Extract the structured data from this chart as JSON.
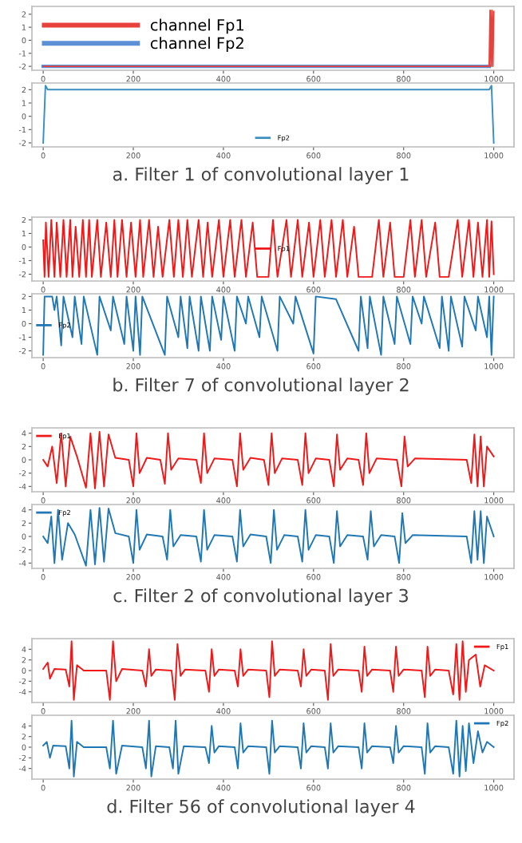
{
  "chart_data": [
    {
      "type": "line",
      "xlim": [
        -25,
        1045
      ],
      "xticks": [
        0,
        200,
        400,
        600,
        800,
        1000
      ],
      "ylim": [
        -2.3,
        2.6
      ],
      "yticks": [
        -2,
        -1,
        0,
        1,
        2
      ],
      "legend": "top left",
      "series": [
        {
          "name": "channel Fp1",
          "color": "#e8413c",
          "x": [
            0,
            990,
            992,
            994,
            996,
            998,
            1000
          ],
          "values": [
            -2,
            -2,
            2.3,
            -2,
            2.3,
            -2,
            2.2
          ]
        },
        {
          "name": "channel Fp2",
          "color": "#5b8fd6",
          "x": [
            0,
            990
          ],
          "values": [
            -2,
            -2
          ]
        }
      ]
    },
    {
      "type": "line",
      "xlim": [
        -25,
        1045
      ],
      "xticks": [
        0,
        200,
        400,
        600,
        800,
        1000
      ],
      "ylim": [
        -2.3,
        2.5
      ],
      "yticks": [
        -2,
        -1,
        0,
        1,
        2
      ],
      "legend": "bottom",
      "annotations": [
        "a. Filter 1 of convolutional layer 1"
      ],
      "series": [
        {
          "name": "Fp2",
          "color": "#3b8ec0",
          "x": [
            0,
            5,
            10,
            500,
            990,
            995,
            1000
          ],
          "values": [
            -2,
            2.3,
            2,
            2,
            2,
            2.3,
            -2
          ]
        }
      ]
    },
    {
      "type": "line",
      "xlim": [
        -25,
        1045
      ],
      "xticks": [
        0,
        200,
        400,
        600,
        800,
        1000
      ],
      "ylim": [
        -2.5,
        2.2
      ],
      "yticks": [
        -2,
        -1,
        0,
        1,
        2
      ],
      "legend": "center",
      "series": [
        {
          "name": "Fp1",
          "color": "#f01818",
          "x": [
            0,
            3,
            6,
            12,
            18,
            25,
            30,
            38,
            45,
            52,
            60,
            65,
            72,
            80,
            88,
            95,
            102,
            108,
            120,
            128,
            140,
            150,
            158,
            165,
            175,
            185,
            195,
            205,
            215,
            222,
            235,
            245,
            255,
            265,
            280,
            290,
            300,
            310,
            320,
            330,
            345,
            355,
            365,
            375,
            390,
            400,
            415,
            425,
            440,
            450,
            465,
            475,
            500,
            510,
            520,
            540,
            550,
            565,
            575,
            590,
            600,
            615,
            625,
            640,
            650,
            665,
            675,
            690,
            700,
            730,
            745,
            755,
            770,
            780,
            800,
            815,
            825,
            840,
            850,
            870,
            880,
            900,
            920,
            930,
            945,
            955,
            965,
            975,
            985,
            990,
            995,
            1000
          ],
          "values": [
            0.5,
            -2.2,
            1.8,
            -2.2,
            2,
            -2.2,
            1.8,
            -2.2,
            2,
            -2.2,
            2,
            -2.2,
            1.5,
            -2.2,
            2,
            -2.2,
            2,
            -2.2,
            2,
            -2.2,
            1.8,
            -2.2,
            2,
            -2.2,
            2,
            -2.2,
            1.8,
            -2.2,
            2,
            -2.2,
            2,
            -2.2,
            1.5,
            -2.2,
            2,
            -2.2,
            2,
            -2.2,
            2,
            -2.2,
            2,
            -2.2,
            1.8,
            -2.2,
            2,
            -2.2,
            2,
            -2.2,
            2,
            -2.2,
            1.8,
            -2.2,
            -2.2,
            2,
            -2.2,
            2,
            -2.2,
            2,
            -2.2,
            1.8,
            -2.2,
            2,
            -2.2,
            2,
            -2.2,
            2,
            -2.2,
            1.5,
            -2.2,
            -2.2,
            2,
            -2.2,
            1.8,
            -2.2,
            -2.2,
            2,
            -2.2,
            2,
            -2.2,
            1.8,
            -2.2,
            -2.2,
            2,
            -2.2,
            2,
            -2.2,
            1.8,
            -2.2,
            2,
            -2.2,
            1.9,
            -2
          ]
        }
      ]
    },
    {
      "type": "line",
      "xlim": [
        -25,
        1045
      ],
      "xticks": [
        0,
        200,
        400,
        600,
        800,
        1000
      ],
      "ylim": [
        -2.5,
        2.2
      ],
      "yticks": [
        -2,
        -1,
        0,
        1,
        2
      ],
      "legend": "left",
      "annotations": [
        "b. Filter 7 of convolutional layer 2"
      ],
      "series": [
        {
          "name": "Fp2",
          "color": "#1f77b4",
          "x": [
            0,
            3,
            20,
            25,
            30,
            40,
            45,
            65,
            70,
            85,
            90,
            120,
            125,
            150,
            155,
            180,
            185,
            200,
            205,
            215,
            220,
            270,
            275,
            300,
            305,
            320,
            325,
            345,
            350,
            370,
            375,
            395,
            400,
            425,
            430,
            450,
            455,
            480,
            485,
            520,
            525,
            555,
            560,
            600,
            605,
            650,
            700,
            705,
            720,
            725,
            750,
            755,
            780,
            785,
            815,
            820,
            840,
            845,
            880,
            885,
            900,
            905,
            930,
            935,
            960,
            965,
            985,
            990,
            995,
            1000
          ],
          "values": [
            -2.3,
            2,
            2,
            1,
            2,
            -1.6,
            2,
            -1,
            2,
            -1.5,
            2,
            -2.3,
            2,
            -0.5,
            2,
            -1.5,
            2,
            -2,
            2,
            -2.3,
            2,
            -2.3,
            2,
            -1,
            2,
            -1.8,
            2,
            -2,
            2,
            -2,
            2,
            -1.2,
            2,
            -2,
            2,
            0,
            2,
            -1,
            2,
            -2,
            2,
            0,
            2,
            -2.2,
            2,
            1.8,
            -2,
            2,
            -1.8,
            2,
            -2.3,
            2,
            -1.5,
            2,
            -1.5,
            2,
            0,
            2,
            -1.8,
            2,
            -2,
            2,
            -1.7,
            2,
            -0.5,
            2,
            -1,
            2,
            -2.3,
            2
          ]
        }
      ]
    },
    {
      "type": "line",
      "xlim": [
        -25,
        1045
      ],
      "xticks": [
        0,
        200,
        400,
        600,
        800,
        1000
      ],
      "ylim": [
        -4.8,
        4.8
      ],
      "yticks": [
        -4,
        -2,
        0,
        2,
        4
      ],
      "legend": "top left",
      "series": [
        {
          "name": "Fp1",
          "color": "#f01818",
          "x": [
            0,
            10,
            20,
            30,
            40,
            50,
            60,
            75,
            95,
            105,
            115,
            125,
            135,
            145,
            160,
            190,
            200,
            207,
            214,
            230,
            260,
            270,
            277,
            284,
            300,
            340,
            350,
            357,
            364,
            380,
            420,
            430,
            437,
            444,
            460,
            490,
            500,
            507,
            514,
            530,
            565,
            575,
            582,
            589,
            605,
            635,
            645,
            652,
            659,
            675,
            700,
            710,
            717,
            724,
            740,
            785,
            795,
            802,
            809,
            825,
            940,
            950,
            957,
            964,
            971,
            978,
            985,
            1000
          ],
          "values": [
            0,
            -1,
            2,
            -3.5,
            4,
            -4,
            3.5,
            0.5,
            -4.2,
            4,
            -4.3,
            4.2,
            -4,
            3.8,
            0.3,
            0,
            -4,
            4,
            -2,
            0.3,
            0,
            -3.6,
            4,
            -1.5,
            0.2,
            0,
            -3.5,
            4,
            -2,
            0.2,
            0,
            -4,
            4,
            -1.5,
            0.3,
            0,
            -3.8,
            4,
            -2,
            0.2,
            0,
            -3.8,
            4,
            -2,
            0.2,
            0,
            -4,
            3.8,
            -1.5,
            0.2,
            0,
            -3.8,
            4,
            -2,
            0.2,
            0,
            -4,
            3.5,
            -1,
            0.2,
            0,
            -3.5,
            3.8,
            -4,
            3.5,
            -4,
            2,
            0.5
          ]
        }
      ]
    },
    {
      "type": "line",
      "xlim": [
        -25,
        1045
      ],
      "xticks": [
        0,
        200,
        400,
        600,
        800,
        1000
      ],
      "ylim": [
        -4.8,
        4.8
      ],
      "yticks": [
        -4,
        -2,
        0,
        2,
        4
      ],
      "legend": "top left",
      "annotations": [
        "c. Filter 2 of convolutional layer 3"
      ],
      "series": [
        {
          "name": "Fp2",
          "color": "#1f77b4",
          "x": [
            0,
            10,
            18,
            25,
            33,
            42,
            55,
            70,
            95,
            105,
            115,
            125,
            135,
            145,
            160,
            190,
            200,
            207,
            214,
            230,
            265,
            275,
            282,
            289,
            305,
            340,
            350,
            357,
            364,
            380,
            420,
            430,
            437,
            444,
            460,
            495,
            505,
            512,
            519,
            535,
            565,
            575,
            582,
            589,
            605,
            635,
            645,
            652,
            659,
            675,
            710,
            720,
            727,
            734,
            750,
            780,
            790,
            797,
            804,
            820,
            940,
            950,
            957,
            964,
            971,
            978,
            985,
            1000
          ],
          "values": [
            0,
            -1,
            3,
            -4,
            4,
            -3.5,
            2,
            0.3,
            -4.4,
            4,
            -4.2,
            4.3,
            -3.8,
            4.2,
            0.5,
            0,
            -4,
            4,
            -2,
            0.3,
            0,
            -3.5,
            4,
            -1.5,
            0.2,
            0,
            -3.8,
            4,
            -2,
            0.2,
            0,
            -3.8,
            4,
            -1.5,
            0.3,
            0,
            -4,
            4,
            -2,
            0.2,
            0,
            -3.8,
            4,
            -2,
            0.2,
            0,
            -4,
            3.8,
            -1.5,
            0.2,
            0,
            -3.5,
            3.8,
            -1.5,
            0.2,
            0,
            -4,
            3.5,
            -1,
            0.2,
            0,
            -4,
            3.8,
            -3.5,
            3.8,
            -4,
            3,
            0
          ]
        }
      ]
    },
    {
      "type": "line",
      "xlim": [
        -25,
        1045
      ],
      "xticks": [
        0,
        200,
        400,
        600,
        800,
        1000
      ],
      "ylim": [
        -6,
        6
      ],
      "yticks": [
        -4,
        -2,
        0,
        2,
        4
      ],
      "legend": "top right",
      "series": [
        {
          "name": "Fp1",
          "color": "#f01818",
          "x": [
            0,
            10,
            15,
            25,
            50,
            58,
            63,
            68,
            75,
            90,
            140,
            148,
            155,
            162,
            175,
            220,
            228,
            235,
            240,
            250,
            285,
            292,
            298,
            305,
            315,
            360,
            368,
            374,
            380,
            390,
            425,
            432,
            438,
            444,
            455,
            495,
            502,
            508,
            514,
            525,
            565,
            572,
            578,
            584,
            595,
            625,
            632,
            638,
            644,
            655,
            700,
            707,
            713,
            719,
            730,
            770,
            777,
            783,
            789,
            800,
            840,
            847,
            853,
            859,
            870,
            900,
            910,
            917,
            924,
            931,
            938,
            945,
            960,
            970,
            980,
            1000
          ],
          "values": [
            0.3,
            1.5,
            -1.5,
            0.3,
            0.2,
            -3,
            5.5,
            -5.5,
            1,
            0,
            0,
            -5.5,
            5.5,
            -2,
            0.3,
            0,
            -3,
            4,
            -1,
            0.2,
            0,
            -5.5,
            5,
            -1,
            0.2,
            0,
            -4,
            4,
            -1,
            0.2,
            0,
            -3,
            4,
            -1,
            0.2,
            0,
            -5,
            5.5,
            -1,
            0.2,
            0,
            -3,
            4,
            -1,
            0.2,
            0,
            -5.5,
            5,
            -1,
            0.2,
            0,
            -4,
            4.5,
            -1,
            0.2,
            0,
            -4,
            4.5,
            -1,
            0.2,
            0,
            -5,
            4.5,
            -1,
            0.2,
            0,
            -4.5,
            5,
            -5.5,
            5.5,
            -4,
            2,
            3,
            -3,
            1,
            0
          ]
        }
      ]
    },
    {
      "type": "line",
      "xlim": [
        -25,
        1045
      ],
      "xticks": [
        0,
        200,
        400,
        600,
        800,
        1000
      ],
      "ylim": [
        -6,
        6
      ],
      "yticks": [
        -4,
        -2,
        0,
        2,
        4
      ],
      "legend": "top right",
      "annotations": [
        "d. Filter 56 of convolutional layer 4"
      ],
      "series": [
        {
          "name": "Fp2",
          "color": "#1f77b4",
          "x": [
            0,
            8,
            15,
            22,
            50,
            58,
            63,
            68,
            75,
            90,
            140,
            148,
            155,
            162,
            175,
            220,
            228,
            235,
            240,
            250,
            280,
            288,
            294,
            300,
            312,
            360,
            368,
            374,
            380,
            390,
            425,
            432,
            438,
            444,
            455,
            495,
            502,
            508,
            514,
            525,
            565,
            572,
            578,
            584,
            595,
            625,
            632,
            638,
            644,
            655,
            700,
            707,
            713,
            719,
            730,
            770,
            777,
            783,
            789,
            800,
            840,
            847,
            853,
            859,
            870,
            900,
            910,
            917,
            924,
            931,
            938,
            945,
            955,
            965,
            975,
            985,
            1000
          ],
          "values": [
            0.3,
            1,
            -2,
            0.3,
            0.2,
            -4,
            5,
            -5.5,
            1,
            0,
            0,
            -4,
            5,
            -5,
            0.3,
            0,
            -4,
            5,
            -5.5,
            0.2,
            0,
            -4,
            5,
            -5,
            0.2,
            0,
            -3,
            4,
            -1,
            0.2,
            0,
            -4,
            4.5,
            -1,
            0.2,
            0,
            -5,
            5,
            -1,
            0.2,
            0,
            -4,
            4.5,
            -1,
            0.2,
            0,
            -4,
            4.5,
            -1,
            0.2,
            0,
            -4,
            4.5,
            -1,
            0.2,
            0,
            -3,
            4,
            -1,
            0.2,
            0,
            -5,
            4.5,
            -1,
            0.2,
            0,
            -5,
            5,
            -5.5,
            4,
            -4.5,
            4.5,
            -3,
            3,
            -1,
            1,
            0
          ]
        }
      ]
    }
  ]
}
